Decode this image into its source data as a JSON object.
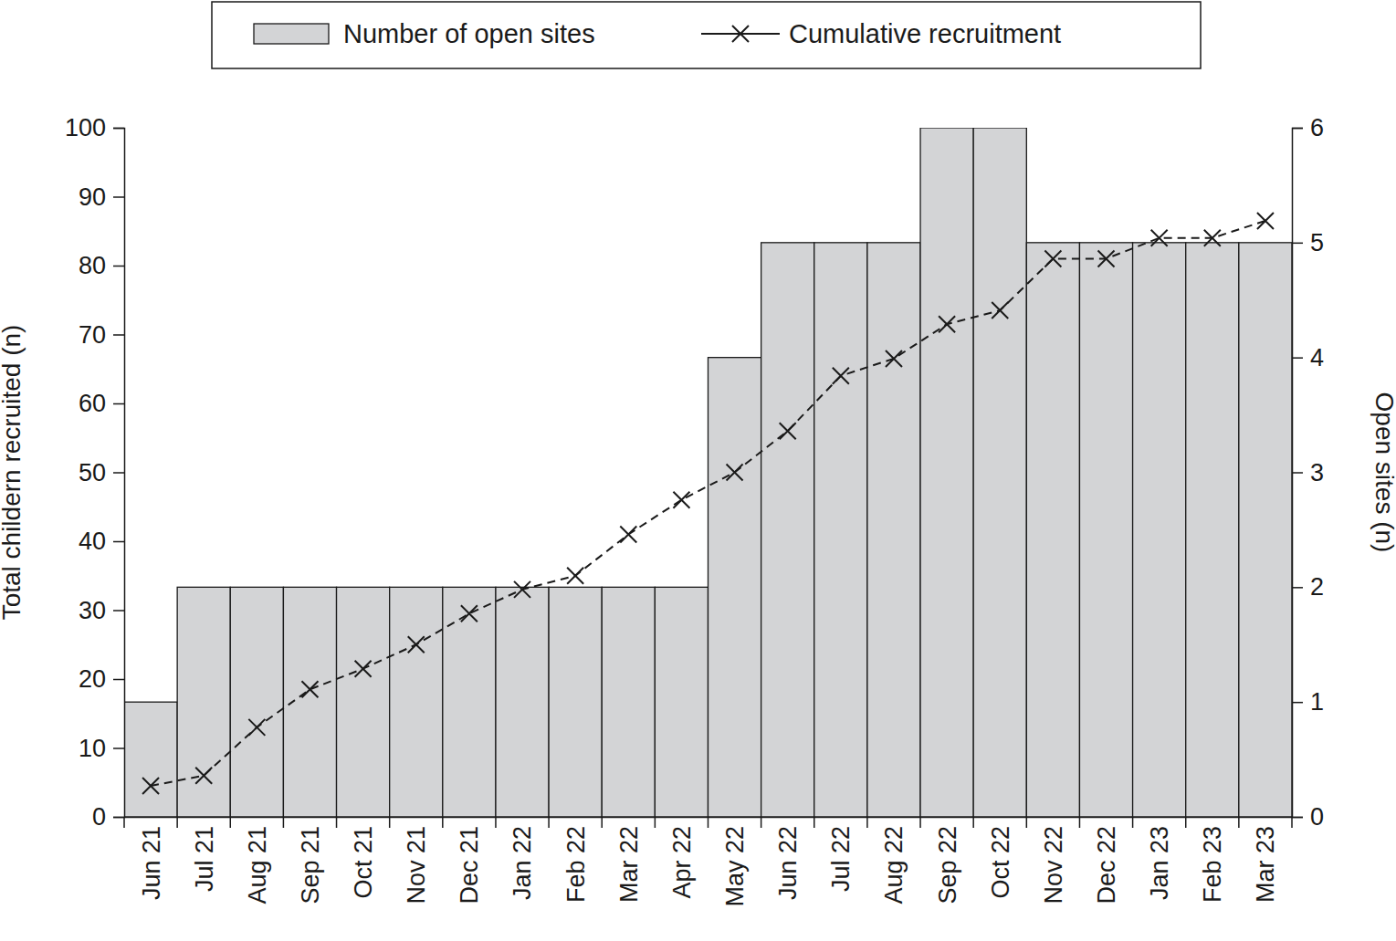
{
  "chart_data": {
    "type": "bar",
    "categories": [
      "Jun 21",
      "Jul 21",
      "Aug 21",
      "Sep 21",
      "Oct 21",
      "Nov 21",
      "Dec 21",
      "Jan 22",
      "Feb 22",
      "Mar 22",
      "Apr 22",
      "May 22",
      "Jun 22",
      "Jul 22",
      "Aug 22",
      "Sep 22",
      "Oct 22",
      "Nov 22",
      "Dec 22",
      "Jan 23",
      "Feb 23",
      "Mar 23"
    ],
    "series": [
      {
        "name": "Number of open sites",
        "type": "bar",
        "axis": "y2",
        "color": "#d3d4d6",
        "values": [
          1,
          2,
          2,
          2,
          2,
          2,
          2,
          2,
          2,
          2,
          2,
          4,
          5,
          5,
          5,
          6,
          6,
          5,
          5,
          5,
          5,
          5
        ]
      },
      {
        "name": "Cumulative recruitment",
        "type": "line",
        "color": "#1a1a1a",
        "marker": "x",
        "line_style": "dashed",
        "values": [
          4.5,
          6,
          13,
          18.5,
          21.5,
          25,
          29.5,
          33,
          35,
          41,
          46,
          50,
          56,
          64,
          66.5,
          71.5,
          73.5,
          81,
          81,
          84,
          84,
          86.5
        ]
      }
    ],
    "y_label": "Total childern recruited (n)",
    "y2_label": "Open sites (n)",
    "ylim": [
      0,
      100
    ],
    "yticks": [
      0,
      10,
      20,
      30,
      40,
      50,
      60,
      70,
      80,
      90,
      100
    ],
    "y2lim": [
      0,
      6
    ],
    "y2ticks": [
      0,
      1,
      2,
      3,
      4,
      5,
      6
    ],
    "legend": "top",
    "grid": false
  }
}
